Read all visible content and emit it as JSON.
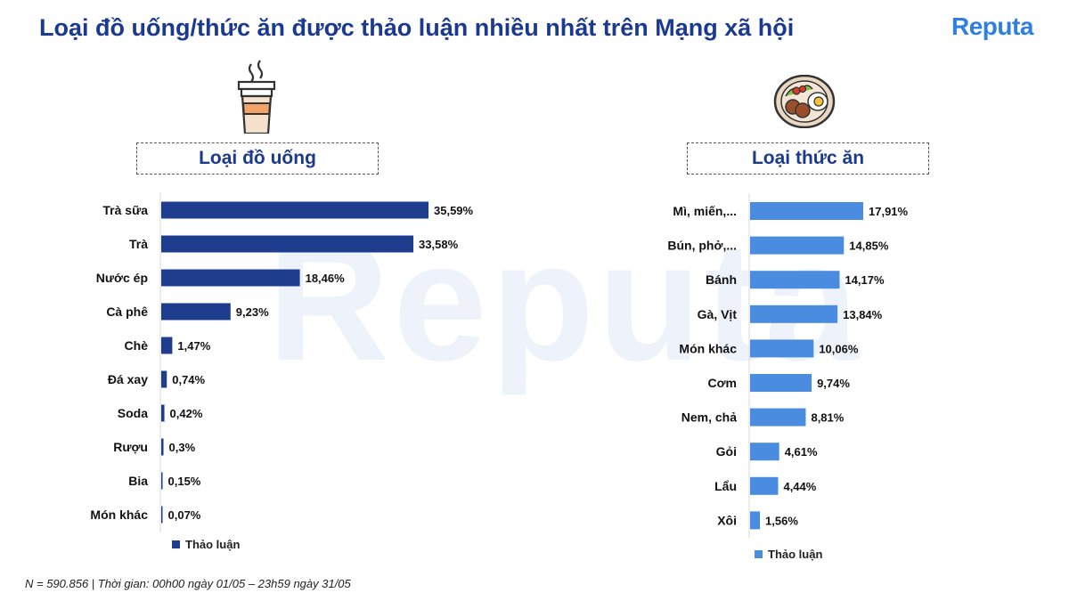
{
  "header": {
    "title": "Loại đồ uống/thức ăn được thảo luận nhiều nhất trên Mạng xã hội",
    "logo_text": "Reputa",
    "watermark_text": "Reputa"
  },
  "footnote": "N = 590.856 | Thời gian: 00h00 ngày 01/05 – 23h59 ngày 31/05",
  "colors": {
    "title": "#1b3a8f",
    "drinks_bar": "#1f3d8f",
    "food_bar": "#4a8de0",
    "logo": "#2f7fe0"
  },
  "icons": {
    "drinks": "coffee-cup-icon",
    "food": "food-plate-icon"
  },
  "chart_data": [
    {
      "type": "bar",
      "orientation": "horizontal",
      "title": "Loại đồ uống",
      "categories": [
        "Trà sữa",
        "Trà",
        "Nước ép",
        "Cà phê",
        "Chè",
        "Đá xay",
        "Soda",
        "Rượu",
        "Bia",
        "Món khác"
      ],
      "series": [
        {
          "name": "Thảo luận",
          "values": [
            35.59,
            33.58,
            18.46,
            9.23,
            1.47,
            0.74,
            0.42,
            0.3,
            0.15,
            0.07
          ],
          "labels": [
            "35,59%",
            "33,58%",
            "18,46%",
            "9,23%",
            "1,47%",
            "0,74%",
            "0,42%",
            "0,3%",
            "0,15%",
            "0,07%"
          ]
        }
      ],
      "unit": "%",
      "xlim": [
        0,
        35.59
      ],
      "grid": false,
      "legend_position": "bottom-left"
    },
    {
      "type": "bar",
      "orientation": "horizontal",
      "title": "Loại thức ăn",
      "categories": [
        "Mì, miến,...",
        "Bún, phở,...",
        "Bánh",
        "Gà, Vịt",
        "Món khác",
        "Cơm",
        "Nem, chả",
        "Gỏi",
        "Lẩu",
        "Xôi"
      ],
      "series": [
        {
          "name": "Thảo luận",
          "values": [
            17.91,
            14.85,
            14.17,
            13.84,
            10.06,
            9.74,
            8.81,
            4.61,
            4.44,
            1.56
          ],
          "labels": [
            "17,91%",
            "14,85%",
            "14,17%",
            "13,84%",
            "10,06%",
            "9,74%",
            "8,81%",
            "4,61%",
            "4,44%",
            "1,56%"
          ]
        }
      ],
      "unit": "%",
      "xlim": [
        0,
        17.91
      ],
      "grid": false,
      "legend_position": "bottom-left"
    }
  ]
}
